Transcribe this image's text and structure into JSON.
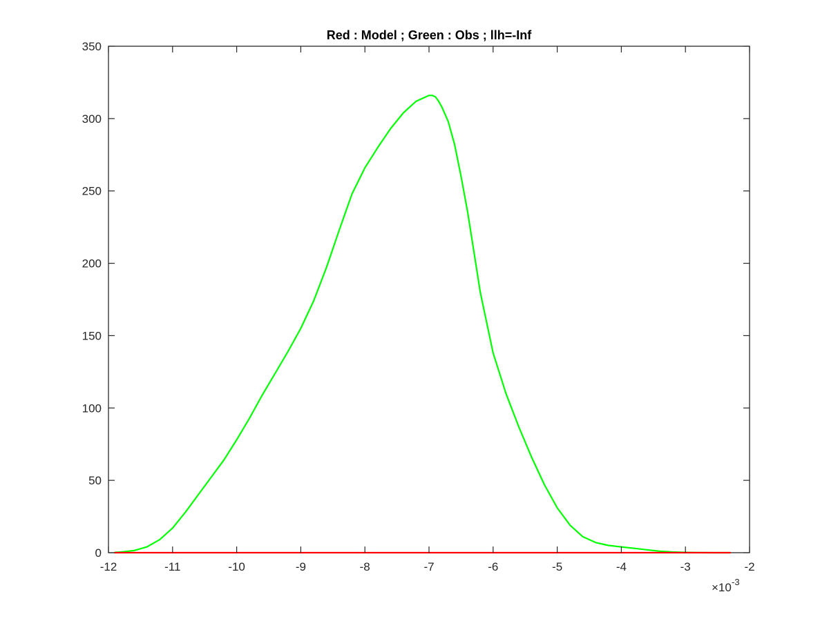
{
  "chart_data": {
    "type": "line",
    "title": "Red : Model   ; Green : Obs ; llh=-Inf",
    "xlabel": "",
    "ylabel": "",
    "xlim": [
      -12,
      -2
    ],
    "ylim": [
      0,
      350
    ],
    "x_ticks": [
      -12,
      -11,
      -10,
      -9,
      -8,
      -7,
      -6,
      -5,
      -4,
      -3,
      -2
    ],
    "y_ticks": [
      0,
      50,
      100,
      150,
      200,
      250,
      300,
      350
    ],
    "x_multiplier": "×10",
    "x_multiplier_exponent": "-3",
    "grid": false,
    "series": [
      {
        "color": "#00ff00",
        "x": [
          -11.9,
          -11.8,
          -11.6,
          -11.4,
          -11.2,
          -11.0,
          -10.8,
          -10.6,
          -10.4,
          -10.2,
          -10.0,
          -9.8,
          -9.6,
          -9.4,
          -9.2,
          -9.0,
          -8.8,
          -8.6,
          -8.4,
          -8.2,
          -8.0,
          -7.8,
          -7.6,
          -7.4,
          -7.2,
          -7.1,
          -7.0,
          -6.95,
          -6.9,
          -6.85,
          -6.8,
          -6.7,
          -6.6,
          -6.5,
          -6.4,
          -6.3,
          -6.2,
          -6.0,
          -5.8,
          -5.6,
          -5.4,
          -5.2,
          -5.0,
          -4.8,
          -4.6,
          -4.4,
          -4.2,
          -4.0,
          -3.8,
          -3.6,
          -3.4,
          -3.2,
          -3.0,
          -2.8,
          -2.6,
          -2.3
        ],
        "y": [
          0.2,
          0.5,
          1.5,
          4,
          9,
          17,
          28,
          40,
          52,
          64,
          78,
          93,
          109,
          124,
          139,
          155,
          174,
          197,
          223,
          248,
          266,
          280,
          293,
          304,
          312,
          314,
          316,
          316,
          315,
          312,
          308,
          298,
          282,
          260,
          236,
          208,
          180,
          138,
          110,
          87,
          66,
          47,
          31,
          19,
          11,
          7,
          5,
          4,
          3,
          2,
          1,
          0.5,
          0.2,
          0.1,
          0,
          0
        ]
      },
      {
        "color": "#ff0000",
        "x": [
          -11.9,
          -2.3
        ],
        "y": [
          0,
          0
        ]
      }
    ]
  }
}
